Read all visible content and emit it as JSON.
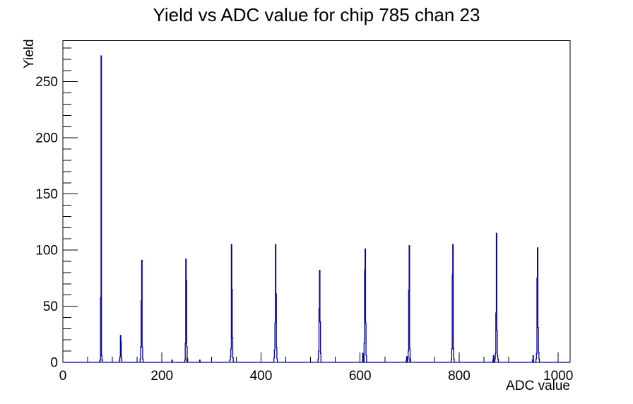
{
  "chart_data": {
    "type": "histogram-line",
    "title": "Yield vs ADC value for chip 785 chan 23",
    "xlabel": "ADC value",
    "ylabel": "Yield",
    "xlim": [
      0,
      1024
    ],
    "ylim": [
      0,
      286.65
    ],
    "x_axis": {
      "major_tick_values": [
        0,
        200,
        400,
        600,
        800,
        1000
      ],
      "major_tick_labels": [
        "0",
        "200",
        "400",
        "600",
        "800",
        "1000"
      ],
      "minor_tick_step": 50
    },
    "y_axis": {
      "major_tick_values": [
        0,
        50,
        100,
        150,
        200,
        250
      ],
      "major_tick_labels": [
        "0",
        "50",
        "100",
        "150",
        "200",
        "250"
      ],
      "minor_tick_step": 10
    },
    "grid": false,
    "legend": false,
    "line_color": "#0000a0",
    "frame_color": "#000000",
    "bin_width": 1,
    "bins": [
      [
        74,
        1
      ],
      [
        75,
        2
      ],
      [
        76,
        58
      ],
      [
        77,
        273
      ],
      [
        78,
        6
      ],
      [
        79,
        2
      ],
      [
        114,
        2
      ],
      [
        115,
        5
      ],
      [
        116,
        24
      ],
      [
        117,
        18
      ],
      [
        118,
        4
      ],
      [
        156,
        3
      ],
      [
        157,
        14
      ],
      [
        158,
        55
      ],
      [
        159,
        91
      ],
      [
        160,
        13
      ],
      [
        161,
        3
      ],
      [
        220,
        2
      ],
      [
        246,
        2
      ],
      [
        247,
        17
      ],
      [
        248,
        92
      ],
      [
        249,
        73
      ],
      [
        250,
        14
      ],
      [
        251,
        3
      ],
      [
        276,
        2
      ],
      [
        337,
        2
      ],
      [
        338,
        5
      ],
      [
        339,
        12
      ],
      [
        340,
        105
      ],
      [
        341,
        65
      ],
      [
        342,
        22
      ],
      [
        343,
        4
      ],
      [
        426,
        4
      ],
      [
        427,
        11
      ],
      [
        428,
        35
      ],
      [
        429,
        105
      ],
      [
        430,
        61
      ],
      [
        431,
        13
      ],
      [
        432,
        3
      ],
      [
        515,
        3
      ],
      [
        516,
        10
      ],
      [
        517,
        48
      ],
      [
        518,
        82
      ],
      [
        519,
        36
      ],
      [
        520,
        8
      ],
      [
        605,
        8
      ],
      [
        606,
        5
      ],
      [
        608,
        17
      ],
      [
        609,
        82
      ],
      [
        610,
        101
      ],
      [
        611,
        35
      ],
      [
        612,
        6
      ],
      [
        693,
        2
      ],
      [
        694,
        5
      ],
      [
        696,
        3
      ],
      [
        697,
        10
      ],
      [
        698,
        64
      ],
      [
        699,
        104
      ],
      [
        700,
        12
      ],
      [
        701,
        3
      ],
      [
        784,
        3
      ],
      [
        785,
        12
      ],
      [
        786,
        78
      ],
      [
        787,
        105
      ],
      [
        788,
        12
      ],
      [
        789,
        3
      ],
      [
        868,
        2
      ],
      [
        869,
        6
      ],
      [
        872,
        3
      ],
      [
        873,
        8
      ],
      [
        874,
        44
      ],
      [
        875,
        115
      ],
      [
        876,
        28
      ],
      [
        877,
        6
      ],
      [
        878,
        3
      ],
      [
        948,
        2
      ],
      [
        949,
        6
      ],
      [
        955,
        3
      ],
      [
        956,
        8
      ],
      [
        957,
        75
      ],
      [
        958,
        102
      ],
      [
        959,
        31
      ],
      [
        960,
        9
      ],
      [
        961,
        3
      ]
    ]
  }
}
